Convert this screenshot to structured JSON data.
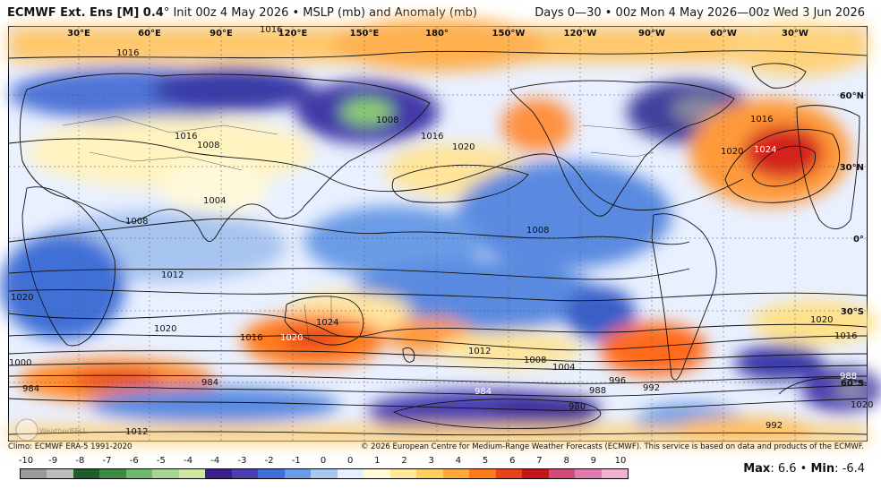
{
  "header": {
    "title": "ECMWF Ext. Ens [M] 0.4",
    "degree": "°",
    "subtitle": " Init 00z 4 May 2026 • MSLP (mb) and Anomaly (mb)",
    "period": "Days 0—30 • 00z Mon 4 May 2026—00z Wed 3 Jun 2026"
  },
  "map": {
    "lon_labels": [
      "30°E",
      "60°E",
      "90°E",
      "120°E",
      "150°E",
      "180°",
      "150°W",
      "120°W",
      "90°W",
      "60°W",
      "30°W"
    ],
    "lat_labels": [
      "60°N",
      "30°N",
      "0°",
      "30°S",
      "60°S"
    ],
    "isobar_labels": [
      "1016",
      "1016",
      "1008",
      "1016",
      "1020",
      "1016",
      "1024",
      "1020",
      "1016",
      "1008",
      "1004",
      "1008",
      "1008",
      "1012",
      "1020",
      "1024",
      "1020",
      "1016",
      "1020",
      "1020",
      "1012",
      "1000",
      "1008",
      "1004",
      "996",
      "984",
      "984",
      "988",
      "992",
      "980",
      "984",
      "988",
      "1012",
      "992",
      "1016",
      "1020"
    ]
  },
  "footer": {
    "climo": "Climo: ECMWF ERA-5 1991-2020",
    "copyright": "© 2026 European Centre for Medium-Range Weather Forecasts (ECMWF). This service is based on data and products of the ECMWF.",
    "watermark": "WeatherBELL"
  },
  "colorbar": {
    "ticks": [
      "-10",
      "-9",
      "-8",
      "-7",
      "-6",
      "-5",
      "-4",
      "-4",
      "-3",
      "-2",
      "-1",
      "0",
      "0",
      "1",
      "2",
      "3",
      "4",
      "5",
      "6",
      "7",
      "8",
      "9",
      "10"
    ],
    "colors": [
      "#9a9a9a",
      "#bdbdbd",
      "#1f5e2b",
      "#3c8a43",
      "#6fb86b",
      "#a6d596",
      "#cfe7a0",
      "#3b1f8a",
      "#4b3fb0",
      "#3f6fd6",
      "#6a9be6",
      "#a9c8f0",
      "#e6efff",
      "#fff9d6",
      "#ffe89a",
      "#ffd060",
      "#ffaa3a",
      "#ff7a1c",
      "#e8421a",
      "#c4151a",
      "#d14a7a",
      "#e07ab0",
      "#f0b0d0"
    ]
  },
  "stats": {
    "max_label": "Max",
    "max_value": "6.6",
    "min_label": "Min",
    "min_value": "-6.4"
  }
}
